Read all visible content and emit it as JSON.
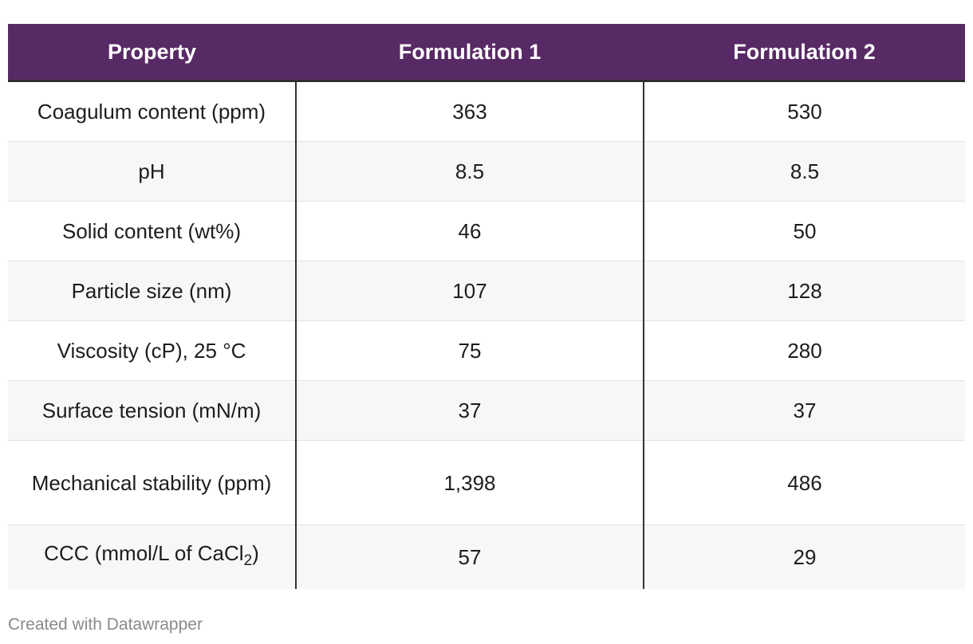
{
  "chart_data": {
    "type": "table",
    "columns": [
      "Property",
      "Formulation 1",
      "Formulation 2"
    ],
    "rows": [
      {
        "property": "Coagulum content (ppm)",
        "f1": "363",
        "f2": "530"
      },
      {
        "property": "pH",
        "f1": "8.5",
        "f2": "8.5"
      },
      {
        "property": "Solid content (wt%)",
        "f1": "46",
        "f2": "50"
      },
      {
        "property": "Particle size (nm)",
        "f1": "107",
        "f2": "128"
      },
      {
        "property": "Viscosity (cP), 25 °C",
        "f1": "75",
        "f2": "280"
      },
      {
        "property": "Surface tension (mN/m)",
        "f1": "37",
        "f2": "37"
      },
      {
        "property": "Mechanical stability (ppm)",
        "f1": "1,398",
        "f2": "486"
      },
      {
        "property_main": "CCC (mmol/L of CaCl",
        "property_sub": "2",
        "property_tail": ")",
        "f1": "57",
        "f2": "29"
      }
    ],
    "header_color": "#582a65",
    "stripe_color": "#f7f7f7"
  },
  "footer": {
    "credit": "Created with Datawrapper"
  }
}
